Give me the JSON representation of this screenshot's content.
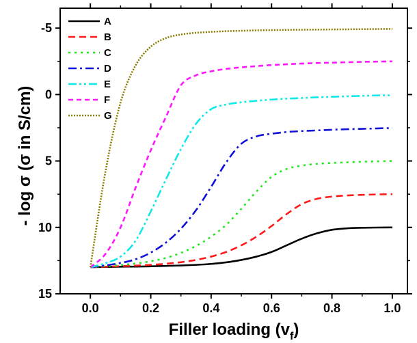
{
  "chart_data": {
    "type": "line",
    "xlabel_main": "Filler loading (v",
    "xlabel_sub": "f",
    "xlabel_end": ")",
    "ylabel": "- log σ (σ in S/cm)",
    "xlim": [
      -0.1,
      1.05
    ],
    "ylim": [
      15,
      -6.5
    ],
    "y_inverted": true,
    "x_ticks": [
      0.0,
      0.2,
      0.4,
      0.6,
      0.8,
      1.0
    ],
    "x_tick_labels": [
      "0.0",
      "0.2",
      "0.4",
      "0.6",
      "0.8",
      "1.0"
    ],
    "y_ticks": [
      -5,
      0,
      5,
      10,
      15
    ],
    "y_tick_labels": [
      "-5",
      "0",
      "5",
      "10",
      "15"
    ],
    "grid": false,
    "legend_position": "top-left",
    "x": [
      0.0,
      0.05,
      0.1,
      0.15,
      0.2,
      0.25,
      0.3,
      0.35,
      0.4,
      0.45,
      0.5,
      0.55,
      0.6,
      0.65,
      0.7,
      0.75,
      0.8,
      0.85,
      0.9,
      0.95,
      1.0
    ],
    "series": [
      {
        "name": "A",
        "color": "#000000",
        "dash": "solid",
        "values": [
          13.0,
          12.98,
          12.96,
          12.95,
          12.93,
          12.9,
          12.87,
          12.82,
          12.75,
          12.63,
          12.45,
          12.2,
          11.85,
          11.35,
          10.85,
          10.45,
          10.18,
          10.07,
          10.03,
          10.01,
          10.0
        ]
      },
      {
        "name": "B",
        "color": "#ff1a1a",
        "dash": "dashed",
        "values": [
          13.0,
          12.96,
          12.92,
          12.88,
          12.82,
          12.74,
          12.62,
          12.45,
          12.2,
          11.85,
          11.35,
          10.7,
          9.9,
          9.0,
          8.25,
          7.85,
          7.68,
          7.6,
          7.55,
          7.52,
          7.5
        ]
      },
      {
        "name": "C",
        "color": "#1ee81e",
        "dash": "dotted",
        "values": [
          13.0,
          12.92,
          12.84,
          12.72,
          12.55,
          12.3,
          11.92,
          11.4,
          10.7,
          9.8,
          8.6,
          7.3,
          6.2,
          5.6,
          5.35,
          5.22,
          5.15,
          5.1,
          5.06,
          5.03,
          5.0
        ]
      },
      {
        "name": "D",
        "color": "#1010d8",
        "dash": "dashdot",
        "values": [
          13.0,
          12.86,
          12.68,
          12.4,
          11.9,
          11.15,
          10.1,
          8.7,
          6.95,
          5.1,
          3.7,
          3.15,
          2.95,
          2.82,
          2.75,
          2.7,
          2.65,
          2.61,
          2.58,
          2.55,
          2.52
        ]
      },
      {
        "name": "E",
        "color": "#12e8e8",
        "dash": "dashdotdot",
        "values": [
          13.0,
          12.7,
          12.2,
          11.0,
          8.8,
          6.4,
          4.1,
          2.2,
          1.1,
          0.75,
          0.58,
          0.47,
          0.38,
          0.31,
          0.26,
          0.21,
          0.17,
          0.13,
          0.1,
          0.07,
          0.05
        ]
      },
      {
        "name": "F",
        "color": "#ff18ff",
        "dash": "shortdash",
        "values": [
          13.0,
          12.0,
          10.0,
          7.0,
          4.2,
          1.7,
          -0.7,
          -1.45,
          -1.75,
          -1.93,
          -2.05,
          -2.14,
          -2.22,
          -2.28,
          -2.33,
          -2.37,
          -2.4,
          -2.43,
          -2.46,
          -2.48,
          -2.5
        ]
      },
      {
        "name": "G",
        "color": "#8b7d00",
        "dash": "dense-dotted",
        "values": [
          13.0,
          5.8,
          0.6,
          -2.2,
          -3.6,
          -4.25,
          -4.52,
          -4.65,
          -4.72,
          -4.77,
          -4.8,
          -4.83,
          -4.85,
          -4.87,
          -4.88,
          -4.89,
          -4.9,
          -4.91,
          -4.92,
          -4.93,
          -4.94
        ]
      }
    ]
  }
}
